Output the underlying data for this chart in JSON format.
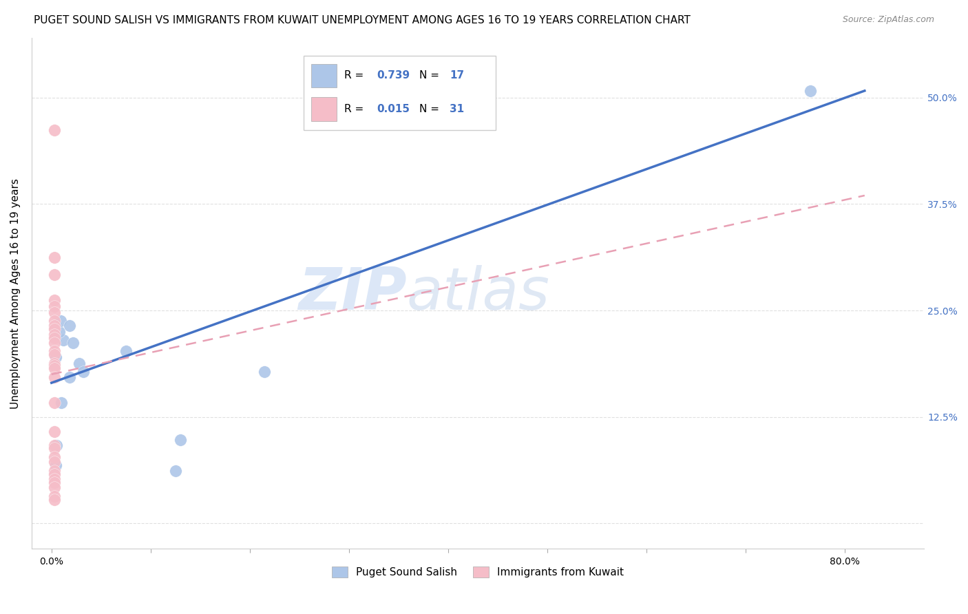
{
  "title": "PUGET SOUND SALISH VS IMMIGRANTS FROM KUWAIT UNEMPLOYMENT AMONG AGES 16 TO 19 YEARS CORRELATION CHART",
  "source": "Source: ZipAtlas.com",
  "ylabel": "Unemployment Among Ages 16 to 19 years",
  "xlabel_ticks_pos": [
    0.0,
    0.1,
    0.2,
    0.3,
    0.4,
    0.5,
    0.6,
    0.7,
    0.8
  ],
  "xlabel_ticks_labels": [
    "0.0%",
    "",
    "",
    "",
    "",
    "",
    "",
    "",
    "80.0%"
  ],
  "ylabel_ticks_pos": [
    0.0,
    0.125,
    0.25,
    0.375,
    0.5
  ],
  "ylabel_ticks_labels": [
    "",
    "12.5%",
    "25.0%",
    "37.5%",
    "50.0%"
  ],
  "xlim": [
    -0.02,
    0.88
  ],
  "ylim": [
    -0.03,
    0.57
  ],
  "blue_label": "Puget Sound Salish",
  "pink_label": "Immigrants from Kuwait",
  "R_blue": "0.739",
  "N_blue": "17",
  "R_pink": "0.015",
  "N_pink": "31",
  "blue_color": "#adc6e8",
  "pink_color": "#f5bdc8",
  "blue_line_color": "#4472c4",
  "pink_line_color": "#e8a0b4",
  "watermark_zip": "ZIP",
  "watermark_atlas": "atlas",
  "blue_scatter_x": [
    0.004,
    0.012,
    0.008,
    0.009,
    0.018,
    0.022,
    0.028,
    0.032,
    0.018,
    0.01,
    0.005,
    0.004,
    0.075,
    0.125,
    0.13,
    0.215,
    0.765
  ],
  "blue_scatter_y": [
    0.195,
    0.215,
    0.225,
    0.238,
    0.232,
    0.212,
    0.188,
    0.178,
    0.172,
    0.142,
    0.092,
    0.068,
    0.202,
    0.062,
    0.098,
    0.178,
    0.508
  ],
  "pink_scatter_x": [
    0.003,
    0.003,
    0.003,
    0.003,
    0.003,
    0.003,
    0.003,
    0.003,
    0.003,
    0.003,
    0.003,
    0.003,
    0.003,
    0.003,
    0.003,
    0.003,
    0.003,
    0.003,
    0.003,
    0.003,
    0.003,
    0.003,
    0.003,
    0.003,
    0.003,
    0.003,
    0.003,
    0.003,
    0.003,
    0.003,
    0.003
  ],
  "pink_scatter_y": [
    0.462,
    0.312,
    0.292,
    0.262,
    0.255,
    0.248,
    0.238,
    0.232,
    0.228,
    0.222,
    0.218,
    0.212,
    0.202,
    0.198,
    0.188,
    0.185,
    0.182,
    0.172,
    0.142,
    0.108,
    0.092,
    0.088,
    0.078,
    0.072,
    0.062,
    0.058,
    0.052,
    0.048,
    0.042,
    0.032,
    0.028
  ],
  "blue_line_x": [
    0.0,
    0.82
  ],
  "blue_line_y": [
    0.165,
    0.508
  ],
  "pink_line_x": [
    0.0,
    0.82
  ],
  "pink_line_y": [
    0.175,
    0.385
  ],
  "grid_color": "#e0e0e0",
  "title_fontsize": 11,
  "tick_fontsize": 10,
  "legend_fontsize": 11,
  "ylabel_fontsize": 11
}
